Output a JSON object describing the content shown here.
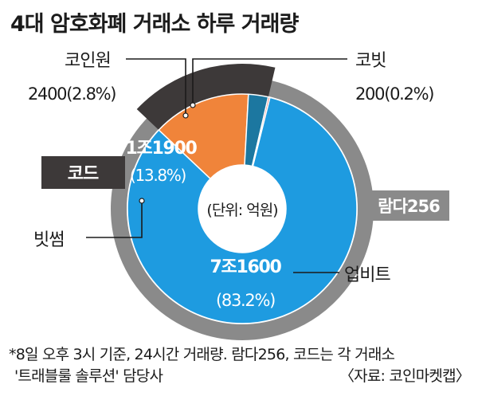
{
  "chart_data": {
    "type": "pie",
    "title": "4대 암호화폐 거래소 하루 거래량",
    "unit_label": "(단위: 억원)",
    "groups": [
      {
        "name": "람다256",
        "color": "#8a8a8a"
      },
      {
        "name": "코드",
        "color": "#3d3939"
      }
    ],
    "slices": [
      {
        "name": "업비트",
        "value": 71600,
        "value_label": "7조1600",
        "percent": 83.2,
        "percent_label": "(83.2%)",
        "color": "#1e9be0",
        "group": "람다256"
      },
      {
        "name": "빗썸",
        "value": 11900,
        "value_label": "1조1900",
        "percent": 13.8,
        "percent_label": "(13.8%)",
        "color": "#f0843a",
        "group": "코드"
      },
      {
        "name": "코인원",
        "value": 2400,
        "value_label": "2400",
        "percent": 2.8,
        "percent_label": "(2.8%)",
        "color": "#1c77a0",
        "group": "코드"
      },
      {
        "name": "코빗",
        "value": 200,
        "value_label": "200",
        "percent": 0.2,
        "percent_label": "(0.2%)",
        "color": "#e0453a",
        "group": "람다256"
      }
    ],
    "footnote_line1": "*8일 오후 3시 기준, 24시간 거래량. 람다256, 코드는 각 거래소",
    "footnote_line2": "'트래블룰 솔루션' 담당사",
    "source": "〈자료: 코인마켓캡〉"
  }
}
